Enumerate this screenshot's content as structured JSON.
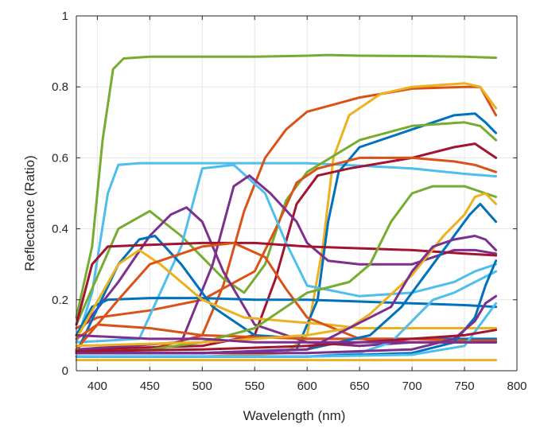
{
  "chart_data": {
    "type": "line",
    "xlabel": "Wavelength (nm)",
    "ylabel": "Reflectance (Ratio)",
    "xlim": [
      380,
      800
    ],
    "ylim": [
      0,
      1
    ],
    "x_ticks": [
      "400",
      "450",
      "500",
      "550",
      "600",
      "650",
      "700",
      "750",
      "800"
    ],
    "y_ticks": [
      "0",
      "0.2",
      "0.4",
      "0.6",
      "0.8",
      "1"
    ],
    "grid": true,
    "box": true,
    "colors": {
      "grid": "#e6e6e6",
      "axis": "#262626",
      "blue": "#0072BD",
      "orange": "#D95319",
      "yellow": "#EDB120",
      "purple": "#7E2F8E",
      "green": "#77AC30",
      "cyan": "#4DBEEE",
      "maroon": "#A2142F"
    },
    "series": [
      {
        "color": "green",
        "x": [
          380,
          395,
          405,
          415,
          425,
          450,
          500,
          550,
          600,
          620,
          650,
          700,
          750,
          780
        ],
        "y": [
          0.15,
          0.35,
          0.65,
          0.85,
          0.88,
          0.885,
          0.885,
          0.885,
          0.888,
          0.89,
          0.888,
          0.887,
          0.885,
          0.882
        ]
      },
      {
        "color": "cyan",
        "x": [
          380,
          395,
          410,
          420,
          440,
          500,
          550,
          600,
          650,
          700,
          750,
          780
        ],
        "y": [
          0.08,
          0.22,
          0.5,
          0.58,
          0.585,
          0.585,
          0.585,
          0.585,
          0.578,
          0.57,
          0.555,
          0.548
        ]
      },
      {
        "color": "orange",
        "x": [
          380,
          450,
          500,
          520,
          540,
          560,
          580,
          600,
          650,
          700,
          750,
          765,
          780
        ],
        "y": [
          0.05,
          0.06,
          0.1,
          0.24,
          0.45,
          0.6,
          0.68,
          0.73,
          0.77,
          0.795,
          0.8,
          0.8,
          0.72
        ]
      },
      {
        "color": "yellow",
        "x": [
          380,
          500,
          580,
          600,
          615,
          625,
          640,
          670,
          700,
          750,
          765,
          780
        ],
        "y": [
          0.04,
          0.04,
          0.05,
          0.1,
          0.35,
          0.6,
          0.72,
          0.78,
          0.8,
          0.81,
          0.8,
          0.74
        ]
      },
      {
        "color": "blue",
        "x": [
          380,
          500,
          590,
          610,
          620,
          630,
          650,
          700,
          740,
          760,
          770,
          780
        ],
        "y": [
          0.05,
          0.05,
          0.06,
          0.2,
          0.42,
          0.56,
          0.63,
          0.68,
          0.72,
          0.725,
          0.7,
          0.67
        ]
      },
      {
        "color": "green",
        "x": [
          380,
          420,
          450,
          480,
          520,
          540,
          560,
          580,
          600,
          650,
          700,
          750,
          765,
          780
        ],
        "y": [
          0.13,
          0.4,
          0.45,
          0.38,
          0.26,
          0.22,
          0.3,
          0.48,
          0.56,
          0.65,
          0.69,
          0.7,
          0.69,
          0.65
        ]
      },
      {
        "color": "maroon",
        "x": [
          380,
          500,
          550,
          570,
          590,
          610,
          640,
          700,
          740,
          760,
          780
        ],
        "y": [
          0.06,
          0.07,
          0.1,
          0.26,
          0.47,
          0.55,
          0.57,
          0.6,
          0.63,
          0.64,
          0.6
        ]
      },
      {
        "color": "orange",
        "x": [
          380,
          400,
          450,
          500,
          550,
          570,
          590,
          610,
          650,
          700,
          740,
          760,
          780
        ],
        "y": [
          0.12,
          0.15,
          0.17,
          0.2,
          0.28,
          0.4,
          0.53,
          0.57,
          0.6,
          0.6,
          0.59,
          0.58,
          0.56
        ]
      },
      {
        "color": "cyan",
        "x": [
          380,
          440,
          480,
          500,
          530,
          560,
          580,
          600,
          650,
          700,
          740,
          760,
          780
        ],
        "y": [
          0.08,
          0.09,
          0.35,
          0.57,
          0.58,
          0.5,
          0.36,
          0.24,
          0.21,
          0.22,
          0.25,
          0.28,
          0.3
        ]
      },
      {
        "color": "purple",
        "x": [
          380,
          480,
          510,
          530,
          545,
          565,
          590,
          600,
          620,
          650,
          700,
          740,
          760,
          780
        ],
        "y": [
          0.06,
          0.08,
          0.3,
          0.52,
          0.55,
          0.5,
          0.42,
          0.36,
          0.31,
          0.3,
          0.3,
          0.34,
          0.34,
          0.33
        ]
      },
      {
        "color": "purple",
        "x": [
          380,
          420,
          450,
          470,
          485,
          500,
          520,
          550,
          600,
          650,
          700,
          750,
          780
        ],
        "y": [
          0.1,
          0.25,
          0.38,
          0.44,
          0.46,
          0.42,
          0.28,
          0.13,
          0.08,
          0.07,
          0.08,
          0.08,
          0.08
        ]
      },
      {
        "color": "blue",
        "x": [
          380,
          420,
          440,
          455,
          480,
          510,
          550,
          600,
          650,
          700,
          750,
          780
        ],
        "y": [
          0.05,
          0.3,
          0.37,
          0.38,
          0.3,
          0.18,
          0.1,
          0.09,
          0.09,
          0.09,
          0.09,
          0.09
        ]
      },
      {
        "color": "maroon",
        "x": [
          380,
          395,
          410,
          450,
          500,
          550,
          600,
          650,
          700,
          750,
          780
        ],
        "y": [
          0.13,
          0.3,
          0.35,
          0.355,
          0.36,
          0.36,
          0.35,
          0.345,
          0.34,
          0.33,
          0.325
        ]
      },
      {
        "color": "blue",
        "x": [
          380,
          395,
          410,
          450,
          500,
          550,
          600,
          650,
          700,
          750,
          780
        ],
        "y": [
          0.1,
          0.18,
          0.2,
          0.205,
          0.205,
          0.2,
          0.2,
          0.195,
          0.19,
          0.185,
          0.18
        ]
      },
      {
        "color": "yellow",
        "x": [
          380,
          420,
          440,
          460,
          500,
          540,
          580,
          620,
          650,
          700,
          750,
          780
        ],
        "y": [
          0.09,
          0.3,
          0.34,
          0.3,
          0.2,
          0.15,
          0.14,
          0.13,
          0.12,
          0.12,
          0.12,
          0.12
        ]
      },
      {
        "color": "orange",
        "x": [
          380,
          400,
          450,
          500,
          550,
          600,
          650,
          700,
          750,
          780
        ],
        "y": [
          0.09,
          0.13,
          0.12,
          0.1,
          0.095,
          0.09,
          0.09,
          0.09,
          0.085,
          0.085
        ]
      },
      {
        "color": "orange",
        "x": [
          380,
          420,
          450,
          500,
          530,
          560,
          580,
          600,
          650,
          700,
          750,
          780
        ],
        "y": [
          0.06,
          0.2,
          0.3,
          0.35,
          0.36,
          0.32,
          0.23,
          0.15,
          0.09,
          0.08,
          0.08,
          0.08
        ]
      },
      {
        "color": "green",
        "x": [
          380,
          450,
          500,
          550,
          600,
          640,
          660,
          680,
          700,
          720,
          750,
          770,
          780
        ],
        "y": [
          0.05,
          0.06,
          0.08,
          0.12,
          0.22,
          0.25,
          0.3,
          0.42,
          0.5,
          0.52,
          0.52,
          0.5,
          0.49
        ]
      },
      {
        "color": "yellow",
        "x": [
          380,
          500,
          600,
          640,
          660,
          700,
          730,
          750,
          760,
          770,
          780
        ],
        "y": [
          0.07,
          0.08,
          0.1,
          0.12,
          0.16,
          0.27,
          0.38,
          0.44,
          0.49,
          0.5,
          0.47
        ]
      },
      {
        "color": "blue",
        "x": [
          380,
          500,
          600,
          660,
          690,
          720,
          740,
          755,
          765,
          780
        ],
        "y": [
          0.05,
          0.05,
          0.06,
          0.1,
          0.18,
          0.3,
          0.38,
          0.44,
          0.47,
          0.42
        ]
      },
      {
        "color": "purple",
        "x": [
          380,
          500,
          600,
          680,
          700,
          720,
          740,
          760,
          770,
          780
        ],
        "y": [
          0.05,
          0.05,
          0.06,
          0.18,
          0.28,
          0.35,
          0.37,
          0.38,
          0.37,
          0.34
        ]
      },
      {
        "color": "cyan",
        "x": [
          380,
          600,
          650,
          680,
          700,
          720,
          740,
          760,
          780
        ],
        "y": [
          0.04,
          0.04,
          0.05,
          0.08,
          0.14,
          0.2,
          0.22,
          0.25,
          0.28
        ]
      },
      {
        "color": "blue",
        "x": [
          380,
          600,
          700,
          740,
          760,
          770,
          780
        ],
        "y": [
          0.04,
          0.04,
          0.05,
          0.08,
          0.15,
          0.24,
          0.31
        ]
      },
      {
        "color": "purple",
        "x": [
          380,
          600,
          700,
          740,
          760,
          770,
          780
        ],
        "y": [
          0.05,
          0.05,
          0.06,
          0.09,
          0.14,
          0.19,
          0.21
        ]
      },
      {
        "color": "cyan",
        "x": [
          380,
          500,
          600,
          700,
          750,
          770,
          780
        ],
        "y": [
          0.04,
          0.04,
          0.04,
          0.045,
          0.07,
          0.15,
          0.19
        ]
      },
      {
        "color": "maroon",
        "x": [
          380,
          500,
          600,
          700,
          750,
          780
        ],
        "y": [
          0.055,
          0.06,
          0.07,
          0.09,
          0.1,
          0.115
        ]
      },
      {
        "color": "yellow",
        "x": [
          380,
          500,
          600,
          700,
          780
        ],
        "y": [
          0.03,
          0.03,
          0.03,
          0.03,
          0.03
        ]
      },
      {
        "color": "purple",
        "x": [
          380,
          450,
          500,
          550,
          600,
          650,
          700,
          750,
          780
        ],
        "y": [
          0.1,
          0.09,
          0.09,
          0.08,
          0.08,
          0.08,
          0.08,
          0.08,
          0.08
        ]
      }
    ]
  }
}
